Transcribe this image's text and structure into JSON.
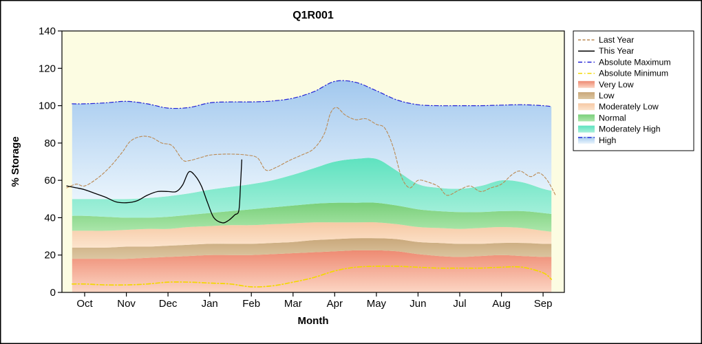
{
  "chart_data": {
    "type": "area",
    "title": "Q1R001",
    "xlabel": "Month",
    "ylabel": "% Storage",
    "ylim": [
      0,
      140
    ],
    "y_ticks": [
      0,
      20,
      40,
      60,
      80,
      100,
      120,
      140
    ],
    "x_tick_labels": [
      "Oct",
      "Nov",
      "Dec",
      "Jan",
      "Feb",
      "Mar",
      "Apr",
      "May",
      "Jun",
      "Jul",
      "Aug",
      "Sep"
    ],
    "x_domain": [
      -0.545,
      11.51
    ],
    "plot_bg": "#fcfce2",
    "page_bg": "#ffffff",
    "band_x": [
      -0.3,
      0,
      0.5,
      1,
      1.5,
      2,
      2.5,
      3,
      3.5,
      4,
      4.5,
      5,
      5.5,
      6,
      6.5,
      7,
      7.5,
      8,
      8.5,
      9,
      9.5,
      10,
      10.5,
      11,
      11.2
    ],
    "bands": [
      {
        "name": "Very Low",
        "color_top": "#ee8a72",
        "color_bottom": "#fcd6c4",
        "top": [
          18,
          18,
          18,
          18,
          18.5,
          19,
          19.5,
          20,
          20,
          20,
          20.5,
          21,
          21.5,
          22,
          22.5,
          22.5,
          22,
          20.5,
          19.5,
          19,
          19.5,
          20,
          19.5,
          19,
          19
        ]
      },
      {
        "name": "Low",
        "color_top": "#c9a77a",
        "color_bottom": "#dcc7a2",
        "top": [
          24,
          24,
          24,
          24.5,
          24.5,
          25,
          25.5,
          26,
          26,
          26,
          26.5,
          27,
          28,
          28.5,
          29,
          29,
          28.5,
          27,
          26.5,
          26,
          26,
          26.5,
          26.5,
          26,
          26
        ]
      },
      {
        "name": "Moderately Low",
        "color_top": "#f6c9a4",
        "color_bottom": "#fce4cd",
        "top": [
          33,
          33,
          33,
          33.5,
          34,
          34,
          35,
          35.5,
          36,
          36,
          36.5,
          37,
          37.5,
          37.5,
          37.5,
          37.5,
          36.5,
          35,
          34.5,
          34,
          34.5,
          35,
          34.5,
          33,
          32.5
        ]
      },
      {
        "name": "Normal",
        "color_top": "#79cf79",
        "color_bottom": "#abe6ab",
        "top": [
          41,
          41,
          40.5,
          40,
          40,
          40.5,
          41.5,
          42.5,
          43.5,
          44.5,
          45.5,
          46.5,
          47.5,
          48,
          48,
          48,
          46.5,
          44.5,
          43.5,
          43,
          43,
          43.5,
          43.5,
          42.5,
          42
        ]
      },
      {
        "name": "Moderately High",
        "color_top": "#5ee2bf",
        "color_bottom": "#a7f0db",
        "top": [
          50,
          50,
          50,
          50,
          50.5,
          51.5,
          53,
          55,
          56.5,
          58,
          60,
          63,
          66.5,
          70,
          71.5,
          71.5,
          65,
          58,
          56,
          55.5,
          57,
          60,
          59,
          55.5,
          54.5
        ]
      },
      {
        "name": "High",
        "color_top": "#a2c8ee",
        "color_bottom": "#e9f4fc",
        "top": [
          101,
          101,
          101.5,
          102.3,
          101,
          98.7,
          99,
          101.5,
          102,
          102,
          102.5,
          104,
          107.5,
          113,
          112.5,
          108,
          103,
          100.5,
          100,
          100,
          100,
          100.3,
          100.5,
          100,
          99.5
        ]
      }
    ],
    "lines": [
      {
        "name": "Absolute Maximum",
        "color": "#2323d6",
        "dash": "6 3 1.5 3",
        "width": 1.2,
        "x": [
          -0.3,
          0,
          0.5,
          1,
          1.5,
          2,
          2.5,
          3,
          3.5,
          4,
          4.5,
          5,
          5.5,
          6,
          6.5,
          7,
          7.5,
          8,
          8.5,
          9,
          9.5,
          10,
          10.5,
          11,
          11.2
        ],
        "y": [
          101,
          101,
          101.5,
          102.3,
          101,
          98.7,
          99,
          101.5,
          102,
          102,
          102.5,
          104,
          107.5,
          113,
          112.5,
          108,
          103,
          100.5,
          100,
          100,
          100,
          100.3,
          100.5,
          100,
          99.5
        ]
      },
      {
        "name": "Absolute Minimum",
        "color": "#f2d800",
        "dash": "6 3 1.5 3",
        "width": 1.7,
        "x": [
          -0.3,
          0,
          0.5,
          1,
          1.5,
          2,
          2.5,
          3,
          3.5,
          4,
          4.5,
          5,
          5.5,
          6,
          6.5,
          7,
          7.5,
          8,
          8.5,
          9,
          9.5,
          10,
          10.5,
          11,
          11.2
        ],
        "y": [
          4.5,
          4.5,
          4,
          4,
          4.5,
          5.5,
          5.5,
          5,
          4.5,
          3,
          3.5,
          5.5,
          8,
          11.5,
          13.5,
          14,
          14,
          13.5,
          13,
          13,
          13,
          13.5,
          13.5,
          10.5,
          7
        ]
      },
      {
        "name": "Last Year",
        "color": "#bb8952",
        "dash": "4 2.5",
        "width": 1.1,
        "x": [
          -0.43,
          -0.2,
          0,
          0.3,
          0.6,
          0.9,
          1.1,
          1.35,
          1.6,
          1.85,
          2.1,
          2.35,
          2.5,
          2.75,
          3,
          3.3,
          3.6,
          3.9,
          4.15,
          4.35,
          4.6,
          4.9,
          5.2,
          5.5,
          5.75,
          5.9,
          6.05,
          6.25,
          6.5,
          6.75,
          7,
          7.2,
          7.4,
          7.6,
          7.8,
          8,
          8.25,
          8.5,
          8.7,
          9,
          9.25,
          9.5,
          9.75,
          10,
          10.25,
          10.45,
          10.7,
          10.9,
          11.1,
          11.3
        ],
        "y": [
          56,
          58,
          57,
          61,
          67,
          75,
          81,
          83.5,
          83,
          80,
          78.5,
          71,
          70.5,
          72,
          73.5,
          74,
          74,
          73.5,
          72,
          65.5,
          67,
          70.5,
          73.5,
          77,
          85,
          96,
          99,
          95,
          92.5,
          93,
          90,
          88,
          78,
          62,
          56,
          60,
          59,
          56.5,
          52,
          55,
          57,
          54,
          56,
          58,
          63,
          65,
          62,
          64,
          60,
          52
        ]
      },
      {
        "name": "This Year",
        "color": "#000000",
        "dash": "",
        "width": 1.3,
        "x": [
          -0.43,
          -0.2,
          0,
          0.25,
          0.5,
          0.75,
          1,
          1.25,
          1.5,
          1.75,
          2,
          2.2,
          2.35,
          2.5,
          2.65,
          2.8,
          2.95,
          3.1,
          3.3,
          3.45,
          3.6,
          3.7,
          3.74,
          3.77
        ],
        "y": [
          57,
          56,
          55,
          53,
          51,
          48.5,
          48,
          49,
          52,
          54,
          54,
          54,
          57.5,
          64.5,
          62.5,
          57,
          48,
          40,
          37.3,
          38.5,
          41.5,
          44,
          58,
          71
        ]
      }
    ],
    "legend": {
      "position": "top-right",
      "entries": [
        {
          "label": "Last Year",
          "swatch": "line",
          "color": "#bb8952",
          "dash": "4 2.5"
        },
        {
          "label": "This Year",
          "swatch": "line",
          "color": "#000000",
          "dash": ""
        },
        {
          "label": "Absolute Maximum",
          "swatch": "line",
          "color": "#2323d6",
          "dash": "6 3 1.5 3"
        },
        {
          "label": "Absolute Minimum",
          "swatch": "line",
          "color": "#f2d800",
          "dash": "6 3 1.5 3"
        },
        {
          "label": "Very Low",
          "swatch": "rect",
          "color_top": "#ee8a72",
          "color_bottom": "#fcd6c4"
        },
        {
          "label": "Low",
          "swatch": "rect",
          "color_top": "#c9a77a",
          "color_bottom": "#dcc7a2"
        },
        {
          "label": "Moderately Low",
          "swatch": "rect",
          "color_top": "#f6c9a4",
          "color_bottom": "#fce4cd"
        },
        {
          "label": "Normal",
          "swatch": "rect",
          "color_top": "#79cf79",
          "color_bottom": "#abe6ab"
        },
        {
          "label": "Moderately High",
          "swatch": "rect",
          "color_top": "#5ee2bf",
          "color_bottom": "#a7f0db"
        },
        {
          "label": "High",
          "swatch": "rect_line",
          "color_top": "#a2c8ee",
          "color_bottom": "#e9f4fc",
          "line_color": "#2323d6",
          "dash": "6 3 1.5 3"
        }
      ]
    }
  }
}
